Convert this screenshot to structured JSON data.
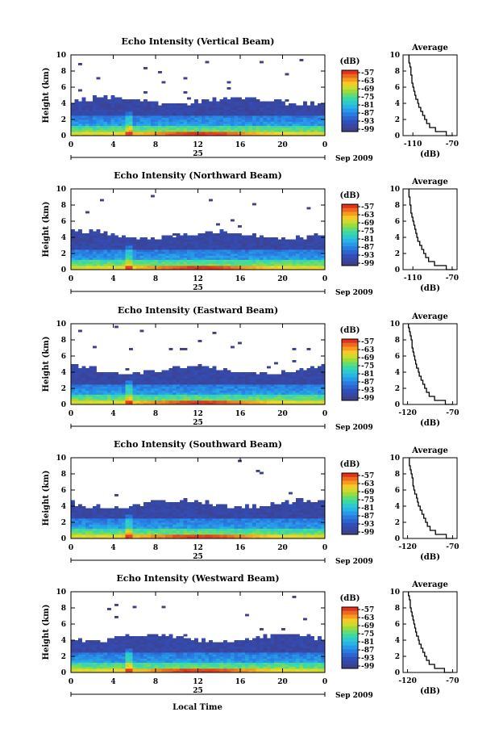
{
  "figure": {
    "x_axis_title": "Local Time",
    "date_label": "Sep 2009",
    "day_label": "25",
    "colorbar_unit": "(dB)",
    "colorbar_ticks": [
      "-57",
      "-63",
      "-69",
      "-75",
      "-81",
      "-87",
      "-93",
      "-99"
    ],
    "avg_title": "Average",
    "avg_xlabel": "(dB)",
    "ylabel": "Height (km)"
  },
  "chart_data": [
    {
      "type": "heatmap",
      "title": "Echo Intensity (Vertical Beam)",
      "xlabel": "Local Time",
      "ylabel": "Height (km)",
      "x_ticks": [
        "0",
        "4",
        "8",
        "12",
        "16",
        "20",
        "0"
      ],
      "y_ticks": [
        "0",
        "2",
        "4",
        "6",
        "8",
        "10"
      ],
      "xlim": [
        0,
        24
      ],
      "ylim": [
        0,
        10
      ],
      "colorbar": {
        "unit": "(dB)",
        "ticks": [
          -57,
          -63,
          -69,
          -75,
          -81,
          -87,
          -93,
          -99
        ]
      },
      "layers_km": [
        {
          "band": "surface maximum",
          "top": 0.6,
          "db": -57
        },
        {
          "band": "lower boundary layer",
          "top": 1.2,
          "db": -69
        },
        {
          "band": "mid layer",
          "top": 2.6,
          "db": -81
        },
        {
          "band": "upper layer",
          "top": 4.2,
          "db": -95
        }
      ],
      "average_profile": {
        "x_ticks": [
          "-110",
          "-70"
        ],
        "xlim": [
          -120,
          -65
        ],
        "height_km": [
          0,
          0.5,
          1,
          1.5,
          2,
          2.5,
          3,
          3.5,
          4,
          4.5,
          5,
          5.5,
          6,
          6.5,
          7,
          7.5,
          8,
          8.5,
          9,
          9.5,
          10
        ],
        "db": [
          -69,
          -76,
          -87,
          -93,
          -96,
          -98,
          -100,
          -102,
          -104,
          -105,
          -107,
          -108,
          -109,
          -110,
          -111,
          -111,
          -112,
          -112,
          -113,
          -114,
          -114
        ]
      }
    },
    {
      "type": "heatmap",
      "title": "Echo Intensity (Northward Beam)",
      "xlabel": "Local Time",
      "ylabel": "Height (km)",
      "x_ticks": [
        "0",
        "4",
        "8",
        "12",
        "16",
        "20",
        "0"
      ],
      "y_ticks": [
        "0",
        "2",
        "4",
        "6",
        "8",
        "10"
      ],
      "xlim": [
        0,
        24
      ],
      "ylim": [
        0,
        10
      ],
      "colorbar": {
        "unit": "(dB)",
        "ticks": [
          -57,
          -63,
          -69,
          -75,
          -81,
          -87,
          -93,
          -99
        ]
      },
      "layers_km": [
        {
          "band": "surface maximum",
          "top": 0.6,
          "db": -57
        },
        {
          "band": "lower boundary layer",
          "top": 1.2,
          "db": -69
        },
        {
          "band": "mid layer",
          "top": 2.6,
          "db": -81
        },
        {
          "band": "upper layer",
          "top": 4.2,
          "db": -95
        }
      ],
      "average_profile": {
        "x_ticks": [
          "-110",
          "-70"
        ],
        "xlim": [
          -120,
          -65
        ],
        "height_km": [
          0,
          0.5,
          1,
          1.5,
          2,
          2.5,
          3,
          3.5,
          4,
          4.5,
          5,
          5.5,
          6,
          6.5,
          7,
          7.5,
          8,
          8.5,
          9,
          9.5,
          10
        ],
        "db": [
          -68,
          -76,
          -88,
          -94,
          -97,
          -99,
          -101,
          -103,
          -105,
          -106,
          -107,
          -108,
          -109,
          -110,
          -111,
          -112,
          -112,
          -113,
          -113,
          -114,
          -114
        ]
      }
    },
    {
      "type": "heatmap",
      "title": "Echo Intensity (Eastward Beam)",
      "xlabel": "Local Time",
      "ylabel": "Height (km)",
      "x_ticks": [
        "0",
        "4",
        "8",
        "12",
        "16",
        "20",
        "0"
      ],
      "y_ticks": [
        "0",
        "2",
        "4",
        "6",
        "8",
        "10"
      ],
      "xlim": [
        0,
        24
      ],
      "ylim": [
        0,
        10
      ],
      "colorbar": {
        "unit": "(dB)",
        "ticks": [
          -57,
          -63,
          -69,
          -75,
          -81,
          -87,
          -93,
          -99
        ]
      },
      "layers_km": [
        {
          "band": "surface maximum",
          "top": 0.6,
          "db": -57
        },
        {
          "band": "lower boundary layer",
          "top": 1.2,
          "db": -69
        },
        {
          "band": "mid layer",
          "top": 2.6,
          "db": -81
        },
        {
          "band": "upper layer",
          "top": 4.2,
          "db": -95
        }
      ],
      "average_profile": {
        "x_ticks": [
          "-120",
          "-70"
        ],
        "xlim": [
          -125,
          -65
        ],
        "height_km": [
          0,
          0.5,
          1,
          1.5,
          2,
          2.5,
          3,
          3.5,
          4,
          4.5,
          5,
          5.5,
          6,
          6.5,
          7,
          7.5,
          8,
          8.5,
          9,
          9.5,
          10
        ],
        "db": [
          -70,
          -78,
          -90,
          -96,
          -99,
          -101,
          -103,
          -105,
          -107,
          -108,
          -110,
          -111,
          -112,
          -113,
          -114,
          -115,
          -115,
          -116,
          -117,
          -118,
          -119
        ]
      }
    },
    {
      "type": "heatmap",
      "title": "Echo Intensity (Southward Beam)",
      "xlabel": "Local Time",
      "ylabel": "Height (km)",
      "x_ticks": [
        "0",
        "4",
        "8",
        "12",
        "16",
        "20",
        "0"
      ],
      "y_ticks": [
        "0",
        "2",
        "4",
        "6",
        "8",
        "10"
      ],
      "xlim": [
        0,
        24
      ],
      "ylim": [
        0,
        10
      ],
      "colorbar": {
        "unit": "(dB)",
        "ticks": [
          -57,
          -63,
          -69,
          -75,
          -81,
          -87,
          -93,
          -99
        ]
      },
      "layers_km": [
        {
          "band": "surface maximum",
          "top": 0.6,
          "db": -57
        },
        {
          "band": "lower boundary layer",
          "top": 1.2,
          "db": -69
        },
        {
          "band": "mid layer",
          "top": 2.6,
          "db": -81
        },
        {
          "band": "upper layer",
          "top": 4.2,
          "db": -95
        }
      ],
      "average_profile": {
        "x_ticks": [
          "-120",
          "-70"
        ],
        "xlim": [
          -125,
          -65
        ],
        "height_km": [
          0,
          0.5,
          1,
          1.5,
          2,
          2.5,
          3,
          3.5,
          4,
          4.5,
          5,
          5.5,
          6,
          6.5,
          7,
          7.5,
          8,
          8.5,
          9,
          9.5,
          10
        ],
        "db": [
          -69,
          -77,
          -89,
          -95,
          -98,
          -100,
          -102,
          -104,
          -106,
          -108,
          -109,
          -110,
          -112,
          -113,
          -114,
          -114,
          -115,
          -116,
          -117,
          -118,
          -118
        ]
      }
    },
    {
      "type": "heatmap",
      "title": "Echo Intensity (Westward Beam)",
      "xlabel": "Local Time",
      "ylabel": "Height (km)",
      "x_ticks": [
        "0",
        "4",
        "8",
        "12",
        "16",
        "20",
        "0"
      ],
      "y_ticks": [
        "0",
        "2",
        "4",
        "6",
        "8",
        "10"
      ],
      "xlim": [
        0,
        24
      ],
      "ylim": [
        0,
        10
      ],
      "colorbar": {
        "unit": "(dB)",
        "ticks": [
          -57,
          -63,
          -69,
          -75,
          -81,
          -87,
          -93,
          -99
        ]
      },
      "layers_km": [
        {
          "band": "surface maximum",
          "top": 0.6,
          "db": -57
        },
        {
          "band": "lower boundary layer",
          "top": 1.2,
          "db": -69
        },
        {
          "band": "mid layer",
          "top": 2.6,
          "db": -81
        },
        {
          "band": "upper layer",
          "top": 4.2,
          "db": -95
        }
      ],
      "average_profile": {
        "x_ticks": [
          "-120",
          "-70"
        ],
        "xlim": [
          -125,
          -65
        ],
        "height_km": [
          0,
          0.5,
          1,
          1.5,
          2,
          2.5,
          3,
          3.5,
          4,
          4.5,
          5,
          5.5,
          6,
          6.5,
          7,
          7.5,
          8,
          8.5,
          9,
          9.5,
          10
        ],
        "db": [
          -71,
          -79,
          -90,
          -96,
          -99,
          -101,
          -103,
          -105,
          -107,
          -108,
          -110,
          -111,
          -112,
          -113,
          -114,
          -115,
          -116,
          -117,
          -117,
          -118,
          -119
        ]
      }
    }
  ]
}
